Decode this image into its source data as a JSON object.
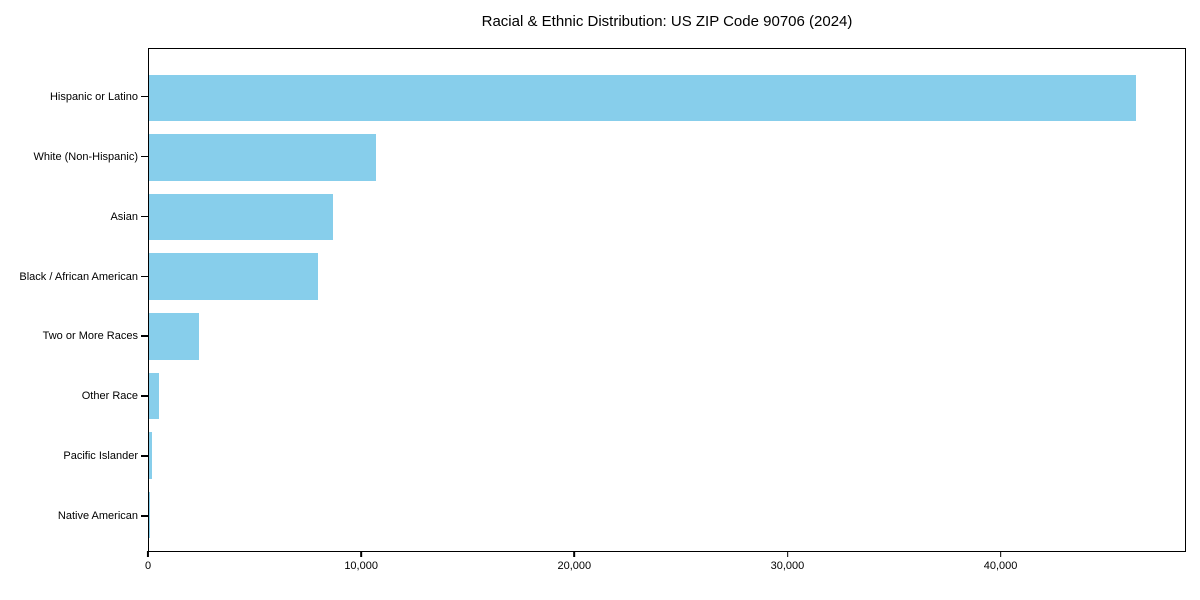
{
  "chart_data": {
    "type": "bar",
    "orientation": "horizontal",
    "title": "Racial & Ethnic Distribution: US ZIP Code 90706 (2024)",
    "categories": [
      "Hispanic or Latino",
      "White (Non-Hispanic)",
      "Asian",
      "Black / African American",
      "Two or More Races",
      "Other Race",
      "Pacific Islander",
      "Native American"
    ],
    "values": [
      46400,
      10670,
      8650,
      7940,
      2350,
      470,
      140,
      50
    ],
    "xlabel": "",
    "ylabel": "",
    "xlim": [
      0,
      48700
    ],
    "x_ticks": [
      0,
      10000,
      20000,
      30000,
      40000
    ],
    "x_tick_labels": [
      "0",
      "10,000",
      "20,000",
      "30,000",
      "40,000"
    ],
    "bar_color": "#87CEEB",
    "axis_color": "#000000",
    "background_color": "#ffffff",
    "grid": false,
    "legend": null
  }
}
